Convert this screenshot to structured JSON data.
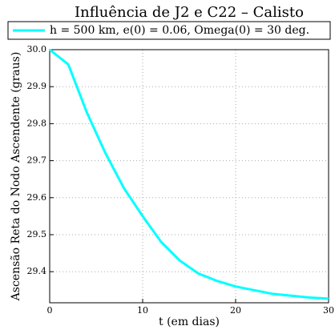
{
  "chart_data": {
    "type": "line",
    "title": "Influência de J2 e C22 – Calisto",
    "xlabel": "t (em dias)",
    "ylabel": "Ascensão Reta do Nodo Ascendente (graus)",
    "x": [
      0,
      2,
      4,
      6,
      8,
      10,
      12,
      14,
      16,
      18,
      20,
      22,
      24,
      26,
      28,
      30
    ],
    "series": [
      {
        "name": "h = 500 km, e(0) = 0.06, Omega(0) = 30 deg.",
        "color": "#00ffff",
        "values": [
          30.0,
          29.96,
          29.83,
          29.72,
          29.625,
          29.55,
          29.48,
          29.43,
          29.395,
          29.375,
          29.36,
          29.35,
          29.34,
          29.335,
          29.33,
          29.327
        ]
      }
    ],
    "xlim": [
      0,
      30
    ],
    "xticks": [
      0,
      10,
      20,
      30
    ],
    "ylim": [
      29.316,
      30.0
    ],
    "yticks": [
      29.4,
      29.5,
      29.6,
      29.7,
      29.8,
      29.9,
      {
        "value": 30,
        "label": "30.0"
      }
    ],
    "grid": true,
    "legend": "top"
  }
}
